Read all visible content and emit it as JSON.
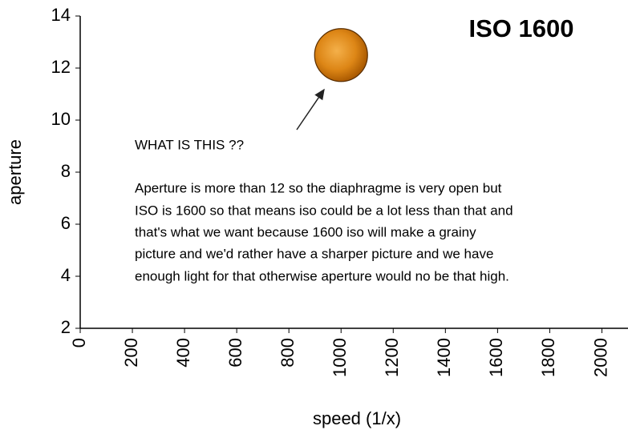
{
  "chart_data": {
    "type": "scatter",
    "title": "ISO 1600",
    "x_label": "speed (1/x)",
    "y_label": "aperture",
    "x": [
      1000
    ],
    "values": [
      12.5
    ],
    "color": "#e08a1e",
    "xlim": [
      0,
      2100
    ],
    "xticks": [
      0,
      200,
      400,
      600,
      800,
      1000,
      1200,
      1400,
      1600,
      1800,
      2000
    ],
    "ylim": [
      2,
      14
    ],
    "yticks": [
      2,
      4,
      6,
      8,
      10,
      12,
      14
    ],
    "grid": false,
    "annotations": [
      "WHAT IS THIS ??",
      "Aperture is more than 12 so the diaphragme is very open but",
      "ISO is 1600 so that means iso could be a lot less than that and",
      "that's what we want because 1600 iso will make a grainy",
      "picture and we'd rather have a sharper picture and we have",
      "enough light for that otherwise aperture would no be that high."
    ]
  }
}
